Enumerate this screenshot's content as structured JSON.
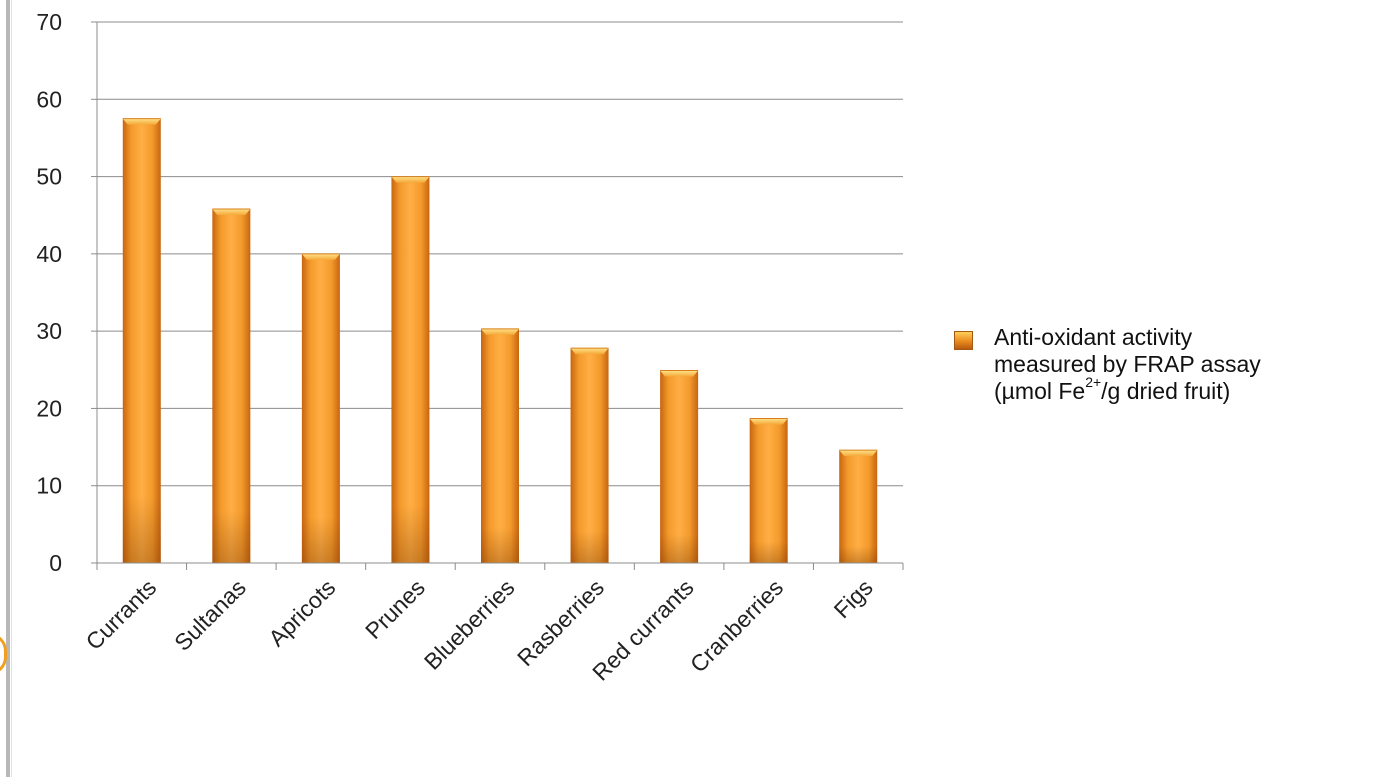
{
  "chart_data": {
    "type": "bar",
    "categories": [
      "Currants",
      "Sultanas",
      "Apricots",
      "Prunes",
      "Blueberries",
      "Rasberries",
      "Red currants",
      "Cranberries",
      "Figs"
    ],
    "series": [
      {
        "name": "Anti-oxidant activity measured by FRAP assay (µmol Fe2+/g dried fruit)",
        "values": [
          57.5,
          45.8,
          40,
          50,
          30.3,
          27.8,
          24.9,
          18.7,
          14.6
        ]
      }
    ],
    "yticks": [
      "0",
      "10",
      "20",
      "30",
      "40",
      "50",
      "60",
      "70"
    ],
    "ylim": [
      0,
      70
    ],
    "grid": true,
    "legend_position": "right",
    "bar_color": "#e98a1e"
  },
  "legend": {
    "line1": "Anti-oxidant activity",
    "line2": "measured by FRAP assay",
    "line3_pre": "(µmol Fe",
    "line3_sup": "2+",
    "line3_post": "/g dried fruit)"
  }
}
